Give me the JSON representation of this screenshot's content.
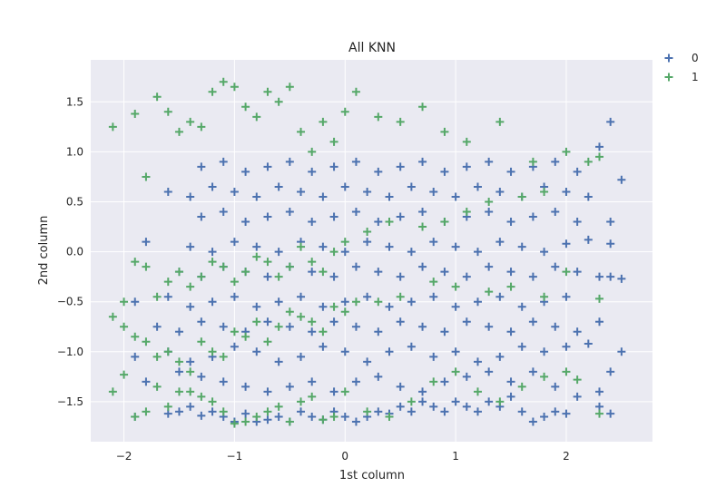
{
  "chart_data": {
    "type": "scatter",
    "title": "All KNN",
    "xlabel": "1st column",
    "ylabel": "2nd column",
    "xlim": [
      -2.3,
      2.78
    ],
    "ylim": [
      -1.9,
      1.92
    ],
    "xticks": [
      -2,
      -1,
      0,
      1,
      2
    ],
    "xtick_labels": [
      "−2",
      "−1",
      "0",
      "1",
      "2"
    ],
    "yticks": [
      -1.5,
      -1.0,
      -0.5,
      0.0,
      0.5,
      1.0,
      1.5
    ],
    "ytick_labels": [
      "−1.5",
      "−1.0",
      "−0.5",
      "0.0",
      "0.5",
      "1.0",
      "1.5"
    ],
    "grid": true,
    "background": "#eaeaf2",
    "marker": "+",
    "legend_position": "outside-top-right",
    "series": [
      {
        "name": "0",
        "color": "#4c72b0",
        "x": [
          -1.9,
          -1.6,
          -1.5,
          -1.4,
          -1.3,
          -1.2,
          -1.1,
          -1.0,
          -0.9,
          -0.8,
          -0.7,
          -0.6,
          -0.5,
          -0.4,
          -0.3,
          -0.2,
          -0.1,
          0.0,
          0.1,
          0.2,
          0.3,
          0.4,
          0.5,
          0.6,
          0.7,
          0.8,
          0.9,
          1.0,
          1.1,
          1.2,
          1.3,
          1.4,
          1.5,
          1.6,
          1.7,
          1.8,
          1.9,
          2.0,
          2.1,
          2.3,
          2.4,
          2.5,
          -1.8,
          -1.5,
          -1.3,
          -1.1,
          -0.9,
          -0.7,
          -0.5,
          -0.3,
          -0.1,
          0.1,
          0.3,
          0.5,
          0.7,
          0.9,
          1.1,
          1.3,
          1.5,
          1.7,
          1.9,
          2.3,
          2.4,
          -1.9,
          -1.6,
          -1.4,
          -1.2,
          -1.0,
          -0.8,
          -0.6,
          -0.4,
          -0.2,
          0.0,
          0.2,
          0.4,
          0.6,
          0.8,
          1.0,
          1.2,
          1.4,
          1.6,
          1.8,
          2.0,
          2.2,
          -1.7,
          -1.5,
          -1.3,
          -1.1,
          -0.9,
          -0.7,
          -0.5,
          -0.3,
          -0.1,
          0.1,
          0.3,
          0.5,
          0.7,
          0.9,
          1.1,
          1.3,
          1.5,
          1.7,
          1.9,
          2.1,
          2.3,
          -1.9,
          -1.6,
          -1.4,
          -1.2,
          -1.0,
          -0.8,
          -0.6,
          -0.4,
          -0.2,
          0.0,
          0.2,
          0.4,
          0.6,
          0.8,
          1.0,
          1.2,
          1.4,
          1.6,
          1.8,
          2.0,
          2.4,
          2.5,
          -1.5,
          -1.3,
          -1.1,
          -0.9,
          -0.7,
          -0.5,
          -0.3,
          -0.1,
          0.1,
          0.3,
          0.5,
          0.7,
          0.9,
          1.1,
          1.3,
          1.5,
          1.7,
          1.9,
          2.1,
          2.3,
          -1.8,
          -1.4,
          -1.2,
          -1.0,
          -0.8,
          -0.6,
          -0.4,
          -0.2,
          0.0,
          0.2,
          0.4,
          0.6,
          0.8,
          1.0,
          1.2,
          1.4,
          1.6,
          1.8,
          2.0,
          2.2,
          2.4,
          -1.3,
          -1.1,
          -0.9,
          -0.7,
          -0.5,
          -0.3,
          -0.1,
          0.1,
          0.3,
          0.5,
          0.7,
          0.9,
          1.1,
          1.3,
          1.5,
          1.7,
          1.9,
          2.1,
          2.4,
          -1.6,
          -1.4,
          -1.2,
          -1.0,
          -0.8,
          -0.6,
          -0.4,
          -0.2,
          0.0,
          0.2,
          0.4,
          0.6,
          0.8,
          1.0,
          1.2,
          1.4,
          1.6,
          1.8,
          2.0,
          2.2,
          2.5,
          -1.3,
          -1.1,
          -0.9,
          -0.7,
          -0.5,
          -0.3,
          -0.1,
          0.1,
          0.3,
          0.5,
          0.7,
          0.9,
          1.1,
          1.3,
          1.5,
          1.7,
          1.9,
          2.1,
          2.3,
          2.4
        ],
        "y": [
          -1.65,
          -1.62,
          -1.6,
          -1.55,
          -1.64,
          -1.6,
          -1.65,
          -1.7,
          -1.62,
          -1.7,
          -1.68,
          -1.65,
          -1.7,
          -1.6,
          -1.65,
          -1.68,
          -1.6,
          -1.65,
          -1.7,
          -1.65,
          -1.6,
          -1.62,
          -1.55,
          -1.6,
          -1.5,
          -1.55,
          -1.6,
          -1.5,
          -1.55,
          -1.6,
          -1.5,
          -1.55,
          -1.45,
          -1.6,
          -1.7,
          -1.65,
          -1.6,
          -1.62,
          -1.45,
          -1.55,
          -1.62,
          -1.0,
          -1.3,
          -1.2,
          -1.25,
          -1.3,
          -1.35,
          -1.4,
          -1.35,
          -1.3,
          -1.4,
          -1.3,
          -1.25,
          -1.35,
          -1.4,
          -1.3,
          -1.25,
          -1.2,
          -1.3,
          -1.2,
          -1.35,
          -1.4,
          -1.2,
          -1.05,
          -1.0,
          -1.1,
          -1.05,
          -0.95,
          -1.0,
          -1.1,
          -1.05,
          -0.95,
          -1.0,
          -1.1,
          -1.0,
          -0.95,
          -1.05,
          -1.0,
          -1.1,
          -1.05,
          -0.95,
          -1.0,
          -0.95,
          -0.92,
          -0.75,
          -0.8,
          -0.7,
          -0.75,
          -0.8,
          -0.7,
          -0.75,
          -0.8,
          -0.7,
          -0.75,
          -0.8,
          -0.7,
          -0.75,
          -0.8,
          -0.7,
          -0.75,
          -0.8,
          -0.7,
          -0.75,
          -0.8,
          -0.7,
          -0.5,
          -0.45,
          -0.55,
          -0.5,
          -0.45,
          -0.55,
          -0.5,
          -0.45,
          -0.55,
          -0.5,
          -0.45,
          -0.55,
          -0.5,
          -0.45,
          -0.55,
          -0.5,
          -0.45,
          -0.55,
          -0.5,
          -0.45,
          -0.25,
          -0.27,
          -0.2,
          -0.25,
          -0.15,
          -0.2,
          -0.25,
          -0.15,
          -0.2,
          -0.25,
          -0.15,
          -0.2,
          -0.25,
          -0.15,
          -0.2,
          -0.25,
          -0.15,
          -0.2,
          -0.25,
          -0.15,
          -0.2,
          -0.25,
          0.1,
          0.05,
          0.0,
          0.1,
          0.05,
          0.0,
          0.1,
          0.05,
          0.0,
          0.1,
          0.05,
          0.0,
          0.1,
          0.05,
          0.0,
          0.1,
          0.05,
          0.0,
          0.08,
          0.12,
          0.08,
          0.35,
          0.4,
          0.3,
          0.35,
          0.4,
          0.3,
          0.35,
          0.4,
          0.3,
          0.35,
          0.4,
          0.3,
          0.35,
          0.4,
          0.3,
          0.35,
          0.4,
          0.3,
          0.3,
          0.6,
          0.55,
          0.65,
          0.6,
          0.55,
          0.65,
          0.6,
          0.55,
          0.65,
          0.6,
          0.55,
          0.65,
          0.6,
          0.55,
          0.65,
          0.6,
          0.55,
          0.65,
          0.6,
          0.55,
          0.72,
          0.85,
          0.9,
          0.8,
          0.85,
          0.9,
          0.8,
          0.85,
          0.9,
          0.8,
          0.85,
          0.9,
          0.8,
          0.85,
          0.9,
          0.8,
          0.85,
          0.9,
          0.8,
          1.05,
          1.3
        ]
      },
      {
        "name": "1",
        "color": "#55a868",
        "x": [
          -2.1,
          -2.0,
          -1.9,
          -1.8,
          -1.7,
          -1.6,
          -1.5,
          -1.4,
          -1.3,
          -1.2,
          -1.1,
          -1.0,
          -0.9,
          -0.8,
          -0.7,
          -0.6,
          -0.5,
          -0.4,
          -0.3,
          -0.2,
          -0.1,
          0.0,
          0.2,
          0.4,
          0.6,
          0.8,
          1.0,
          1.2,
          1.4,
          1.6,
          1.8,
          2.0,
          2.1,
          2.3,
          -2.1,
          -2.0,
          -1.9,
          -1.8,
          -1.7,
          -1.6,
          -1.5,
          -1.4,
          -1.3,
          -1.2,
          -1.1,
          -1.0,
          -0.9,
          -0.8,
          -0.7,
          -0.6,
          -0.5,
          -0.4,
          -0.3,
          -0.2,
          -0.1,
          0.0,
          0.1,
          0.3,
          0.5,
          0.8,
          1.0,
          1.3,
          1.5,
          1.8,
          2.0,
          2.3,
          -2.0,
          -1.9,
          -1.8,
          -1.7,
          -1.6,
          -1.5,
          -1.4,
          -1.3,
          -1.2,
          -1.1,
          -1.0,
          -0.9,
          -0.8,
          -0.7,
          -0.6,
          -0.5,
          -0.4,
          -0.3,
          -0.2,
          -0.1,
          0.0,
          0.2,
          0.4,
          0.7,
          0.9,
          1.1,
          1.3,
          1.6,
          1.8,
          2.2,
          -2.1,
          -1.9,
          -1.8,
          -1.7,
          -1.6,
          -1.5,
          -1.4,
          -1.3,
          -1.2,
          -1.1,
          -1.0,
          -0.9,
          -0.8,
          -0.7,
          -0.6,
          -0.5,
          -0.4,
          -0.3,
          -0.2,
          -0.1,
          0.0,
          0.1,
          0.3,
          0.5,
          0.7,
          0.9,
          1.1,
          1.4,
          1.7,
          2.0,
          2.3
        ],
        "y": [
          -1.4,
          -1.23,
          -1.65,
          -1.6,
          -1.35,
          -1.55,
          -1.4,
          -1.4,
          -1.45,
          -1.5,
          -1.6,
          -1.72,
          -1.7,
          -1.65,
          -1.6,
          -1.55,
          -1.7,
          -1.5,
          -1.45,
          -1.68,
          -1.65,
          -1.4,
          -1.6,
          -1.65,
          -1.5,
          -1.3,
          -1.2,
          -1.4,
          -1.5,
          -1.35,
          -1.25,
          -1.2,
          -1.28,
          -1.62,
          -0.65,
          -0.75,
          -0.85,
          -0.9,
          -1.05,
          -1.0,
          -1.1,
          -1.2,
          -0.9,
          -1.0,
          -1.05,
          -0.8,
          -0.85,
          -0.7,
          -0.9,
          -0.75,
          -0.6,
          -0.65,
          -0.7,
          -0.8,
          -0.55,
          -0.6,
          -0.5,
          -0.5,
          -0.45,
          -0.3,
          -0.35,
          -0.4,
          -0.35,
          -0.45,
          -0.2,
          -0.47,
          -0.5,
          -0.1,
          -0.15,
          -0.45,
          -0.3,
          -0.2,
          -0.35,
          -0.25,
          -0.1,
          -0.15,
          -0.3,
          -0.2,
          -0.05,
          -0.1,
          -0.25,
          -0.15,
          0.05,
          -0.1,
          -0.2,
          0.0,
          0.1,
          0.2,
          0.3,
          0.25,
          0.3,
          0.4,
          0.5,
          0.55,
          0.6,
          0.9,
          1.25,
          1.38,
          0.75,
          1.55,
          1.4,
          1.2,
          1.3,
          1.25,
          1.6,
          1.7,
          1.65,
          1.45,
          1.35,
          1.6,
          1.5,
          1.65,
          1.2,
          1.0,
          1.3,
          1.1,
          1.4,
          1.6,
          1.35,
          1.3,
          1.45,
          1.2,
          1.1,
          1.3,
          0.9,
          1.0,
          0.95
        ]
      }
    ]
  }
}
